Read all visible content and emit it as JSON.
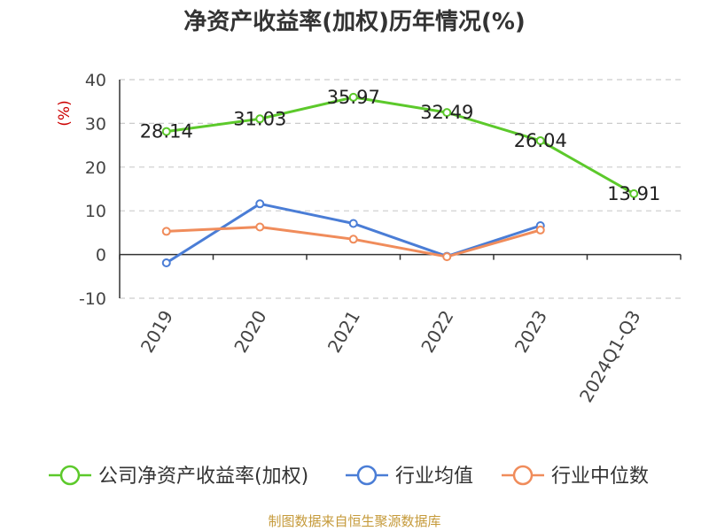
{
  "chart_data": {
    "type": "line",
    "title": "净资产收益率(加权)历年情况(%)",
    "ylabel": "(%)",
    "xlabel": "",
    "categories": [
      "2019",
      "2020",
      "2021",
      "2022",
      "2023",
      "2024Q1-Q3"
    ],
    "ylim": [
      -10,
      40
    ],
    "yticks": [
      40,
      30,
      20,
      10,
      0,
      -10
    ],
    "ytick_labels": [
      "40",
      "30",
      "20",
      "10",
      "0",
      "-10"
    ],
    "grid": true,
    "legend_position": "bottom",
    "series": [
      {
        "name": "公司净资产收益率(加权)",
        "color": "#5cc92b",
        "values": [
          28.14,
          31.03,
          35.97,
          32.49,
          26.04,
          13.91
        ],
        "labels": [
          "28.14",
          "31.03",
          "35.97",
          "32.49",
          "26.04",
          "13.91"
        ]
      },
      {
        "name": "行业均值",
        "color": "#4a7dd6",
        "values": [
          -1.9,
          11.6,
          7.1,
          -0.4,
          6.6,
          null
        ]
      },
      {
        "name": "行业中位数",
        "color": "#f08c5b",
        "values": [
          5.3,
          6.3,
          3.5,
          -0.5,
          5.6,
          null
        ]
      }
    ]
  },
  "footer": {
    "source": "制图数据来自恒生聚源数据库"
  }
}
